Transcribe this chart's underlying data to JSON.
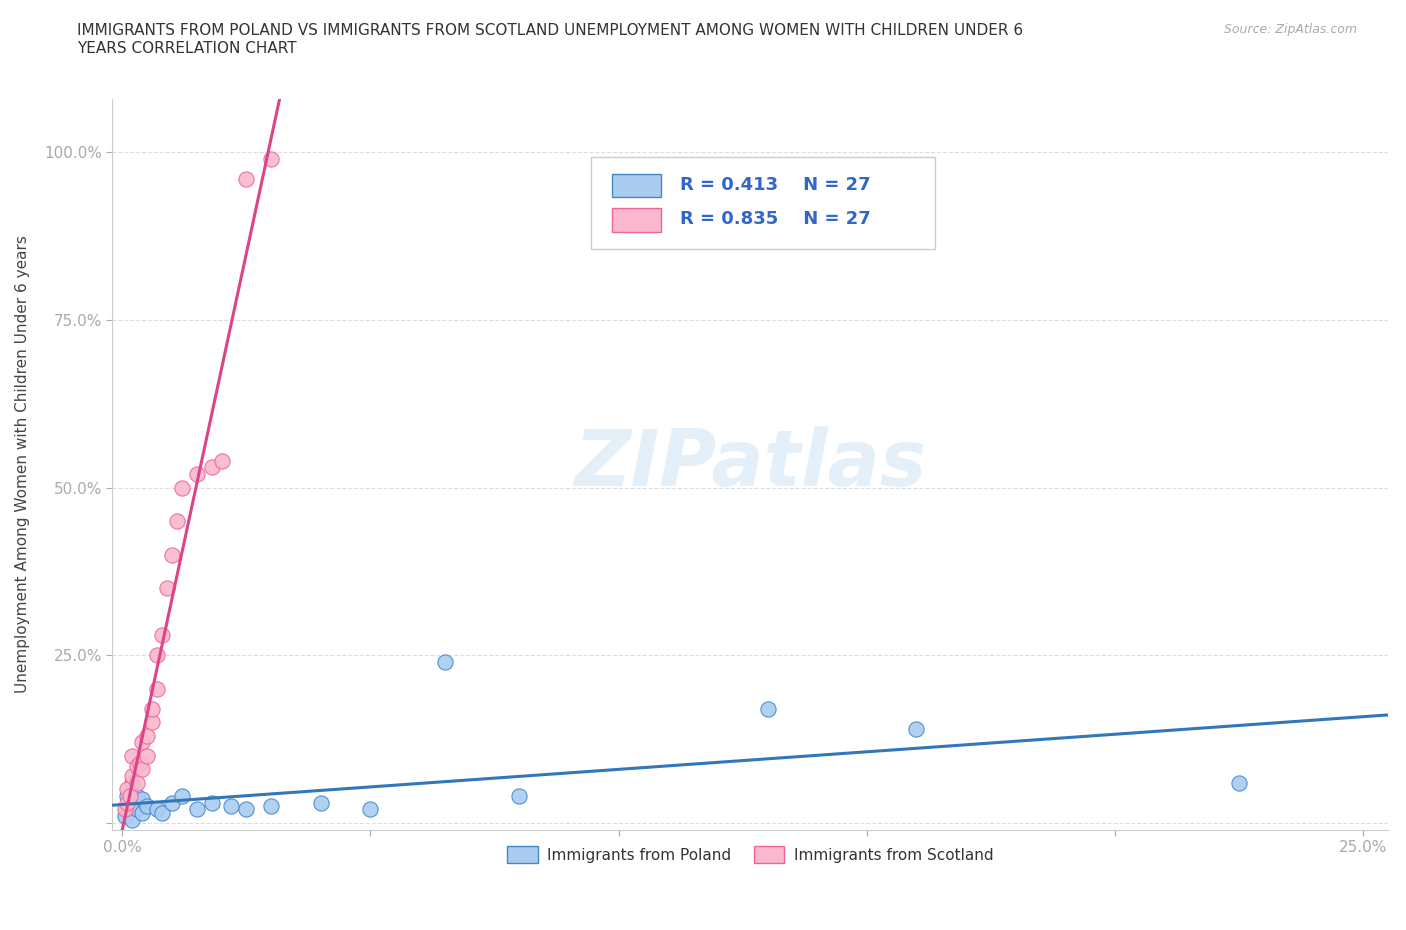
{
  "title": "IMMIGRANTS FROM POLAND VS IMMIGRANTS FROM SCOTLAND UNEMPLOYMENT AMONG WOMEN WITH CHILDREN UNDER 6\nYEARS CORRELATION CHART",
  "source": "Source: ZipAtlas.com",
  "ylabel": "Unemployment Among Women with Children Under 6 years",
  "xlim": [
    -0.002,
    0.255
  ],
  "ylim": [
    -0.01,
    1.08
  ],
  "xticks": [
    0.0,
    0.05,
    0.1,
    0.15,
    0.2,
    0.25
  ],
  "xticklabels": [
    "0.0%",
    "",
    "",
    "",
    "",
    "25.0%"
  ],
  "yticks": [
    0.0,
    0.25,
    0.5,
    0.75,
    1.0
  ],
  "yticklabels": [
    "",
    "25.0%",
    "50.0%",
    "75.0%",
    "100.0%"
  ],
  "poland_color": "#aaccf0",
  "scotland_color": "#f9b8cb",
  "poland_edge_color": "#4488cc",
  "scotland_edge_color": "#ee6699",
  "poland_line_color": "#3377bb",
  "scotland_line_color": "#dd4488",
  "R_poland": 0.413,
  "R_scotland": 0.835,
  "N": 27,
  "watermark_text": "ZIPatlas",
  "legend_poland": "Immigrants from Poland",
  "legend_scotland": "Immigrants from Scotland",
  "poland_x": [
    0.0005,
    0.001,
    0.001,
    0.0015,
    0.002,
    0.002,
    0.003,
    0.003,
    0.004,
    0.004,
    0.005,
    0.007,
    0.008,
    0.01,
    0.012,
    0.015,
    0.018,
    0.022,
    0.025,
    0.03,
    0.04,
    0.05,
    0.065,
    0.08,
    0.13,
    0.16,
    0.225
  ],
  "poland_y": [
    0.01,
    0.02,
    0.04,
    0.03,
    0.005,
    0.06,
    0.02,
    0.04,
    0.015,
    0.035,
    0.025,
    0.02,
    0.015,
    0.03,
    0.04,
    0.02,
    0.03,
    0.025,
    0.02,
    0.025,
    0.03,
    0.02,
    0.24,
    0.04,
    0.17,
    0.14,
    0.06
  ],
  "scotland_x": [
    0.0005,
    0.001,
    0.001,
    0.0015,
    0.002,
    0.002,
    0.003,
    0.003,
    0.0035,
    0.004,
    0.004,
    0.005,
    0.005,
    0.006,
    0.006,
    0.007,
    0.007,
    0.008,
    0.009,
    0.01,
    0.011,
    0.012,
    0.015,
    0.018,
    0.02,
    0.025,
    0.03
  ],
  "scotland_y": [
    0.02,
    0.03,
    0.05,
    0.04,
    0.07,
    0.1,
    0.06,
    0.085,
    0.09,
    0.08,
    0.12,
    0.1,
    0.13,
    0.15,
    0.17,
    0.2,
    0.25,
    0.28,
    0.35,
    0.4,
    0.45,
    0.5,
    0.52,
    0.53,
    0.54,
    0.96,
    0.99
  ],
  "background_color": "#ffffff",
  "grid_color": "#dddddd",
  "tick_color": "#3366cc",
  "legend_text_color": "#3366cc"
}
